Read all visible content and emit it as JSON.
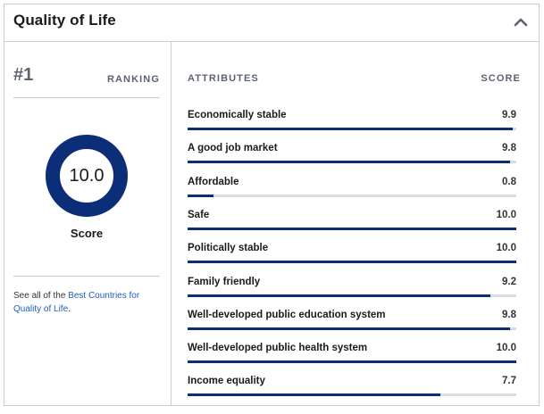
{
  "header": {
    "title": "Quality of Life",
    "toggle_icon": "chevron-up-icon"
  },
  "ranking": {
    "rank": "#1",
    "label": "RANKING"
  },
  "score": {
    "value": "10.0",
    "fraction": 1.0,
    "label": "Score"
  },
  "see_all": {
    "prefix": "See all of the ",
    "link_text": "Best Countries for Quality of Life",
    "suffix": "."
  },
  "columns": {
    "attributes": "ATTRIBUTES",
    "score": "SCORE"
  },
  "attributes": [
    {
      "name": "Economically stable",
      "score": "9.9",
      "value": 9.9
    },
    {
      "name": "A good job market",
      "score": "9.8",
      "value": 9.8
    },
    {
      "name": "Affordable",
      "score": "0.8",
      "value": 0.8
    },
    {
      "name": "Safe",
      "score": "10.0",
      "value": 10.0
    },
    {
      "name": "Politically stable",
      "score": "10.0",
      "value": 10.0
    },
    {
      "name": "Family friendly",
      "score": "9.2",
      "value": 9.2
    },
    {
      "name": "Well-developed public education system",
      "score": "9.8",
      "value": 9.8
    },
    {
      "name": "Well-developed public health system",
      "score": "10.0",
      "value": 10.0
    },
    {
      "name": "Income equality",
      "score": "7.7",
      "value": 7.7
    }
  ],
  "colors": {
    "accent": "#0c2d78",
    "track": "#d9dce1",
    "link": "#1f5fb4",
    "border": "#c9cdd3"
  }
}
